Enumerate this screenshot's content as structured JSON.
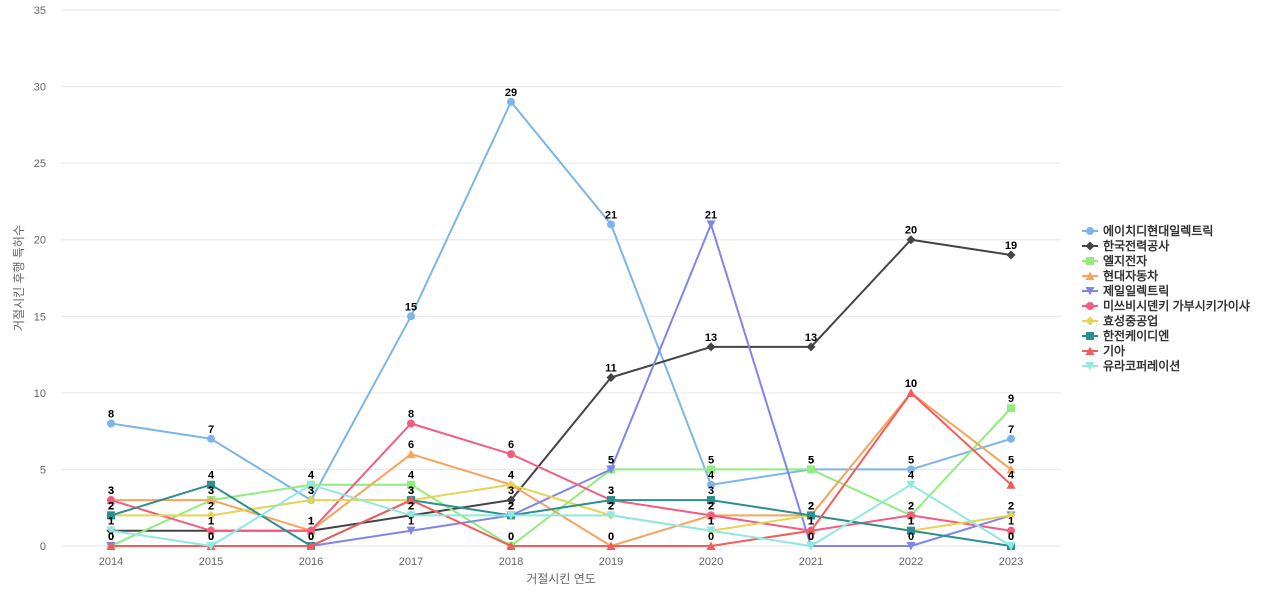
{
  "chart_data": {
    "type": "line",
    "xlabel": "거절시킨 연도",
    "ylabel": "거절시킨 후행 특허수",
    "ylim": [
      0,
      35
    ],
    "yticks": [
      0,
      5,
      10,
      15,
      20,
      25,
      30,
      35
    ],
    "x": [
      "2014",
      "2015",
      "2016",
      "2017",
      "2018",
      "2019",
      "2020",
      "2021",
      "2022",
      "2023"
    ],
    "grid": true,
    "legend_position": "right",
    "series": [
      {
        "name": "에이치디현대일렉트릭",
        "color": "#7cb5ec",
        "marker": "circle",
        "values": [
          8,
          7,
          3,
          15,
          29,
          21,
          4,
          5,
          5,
          7
        ]
      },
      {
        "name": "한국전력공사",
        "color": "#434348",
        "marker": "diamond",
        "values": [
          1,
          1,
          1,
          2,
          3,
          11,
          13,
          13,
          20,
          19
        ]
      },
      {
        "name": "엘지전자",
        "color": "#90ed7d",
        "marker": "square",
        "values": [
          0,
          3,
          4,
          4,
          0,
          5,
          5,
          5,
          2,
          9
        ]
      },
      {
        "name": "현대자동차",
        "color": "#f7a35c",
        "marker": "triangle",
        "values": [
          3,
          3,
          1,
          6,
          4,
          0,
          2,
          2,
          10,
          5
        ]
      },
      {
        "name": "제일일렉트릭",
        "color": "#8085e9",
        "marker": "triangle-down",
        "values": [
          0,
          0,
          0,
          1,
          2,
          5,
          21,
          0,
          0,
          2
        ]
      },
      {
        "name": "미쓰비시덴키 가부시키가이샤",
        "color": "#f15c80",
        "marker": "circle",
        "values": [
          3,
          1,
          1,
          8,
          6,
          3,
          2,
          1,
          2,
          1
        ]
      },
      {
        "name": "효성중공업",
        "color": "#e4d354",
        "marker": "diamond",
        "values": [
          2,
          2,
          3,
          3,
          4,
          2,
          1,
          2,
          1,
          2
        ]
      },
      {
        "name": "한전케이디엔",
        "color": "#2b908f",
        "marker": "square",
        "values": [
          2,
          4,
          0,
          3,
          2,
          3,
          3,
          2,
          1,
          0
        ]
      },
      {
        "name": "기아",
        "color": "#f45b5b",
        "marker": "triangle",
        "values": [
          0,
          0,
          0,
          3,
          0,
          0,
          0,
          1,
          10,
          4
        ]
      },
      {
        "name": "유라코퍼레이션",
        "color": "#91e8e1",
        "marker": "triangle-down",
        "values": [
          1,
          0,
          4,
          2,
          2,
          2,
          1,
          0,
          4,
          0
        ]
      }
    ]
  }
}
